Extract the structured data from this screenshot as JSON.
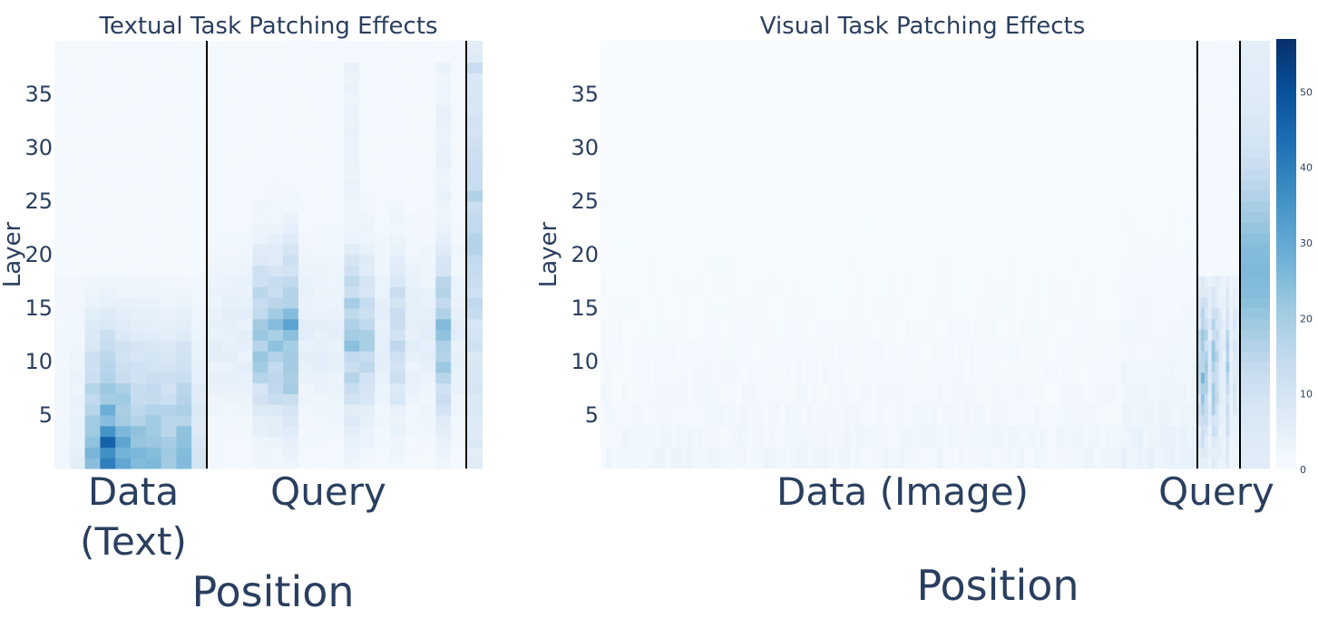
{
  "chart_data": [
    {
      "type": "heatmap",
      "title": "Textual Task Patching Effects",
      "xlabel": "Position",
      "ylabel": "Layer",
      "colorscale": "Blues",
      "y_ticks": [
        5,
        10,
        15,
        20,
        25,
        30,
        35
      ],
      "ylim": [
        0,
        40
      ],
      "n_layers": 40,
      "position_groups": [
        "Data (Text)",
        "Query"
      ],
      "x_segments": {
        "data": 10,
        "query": 17,
        "last": 1
      },
      "values_description_note": "",
      "peak": {
        "segment": "data",
        "position": 3,
        "layer": 2,
        "value": 57
      }
    },
    {
      "type": "heatmap",
      "title": "Visual Task Patching Effects",
      "xlabel": "Position",
      "ylabel": "Layer",
      "colorscale": "Blues",
      "y_ticks": [
        5,
        10,
        15,
        20,
        25,
        30,
        35
      ],
      "ylim": [
        0,
        40
      ],
      "n_layers": 40,
      "position_groups": [
        "Data (Image)",
        "Query"
      ],
      "colorbar": {
        "ticks": [
          0,
          10,
          20,
          30,
          40,
          50
        ],
        "range": [
          0,
          57
        ]
      }
    }
  ],
  "colors": {
    "text": "#2a3f5f",
    "low": "#f7fbff",
    "high": "#08306b",
    "separator": "#000000"
  }
}
